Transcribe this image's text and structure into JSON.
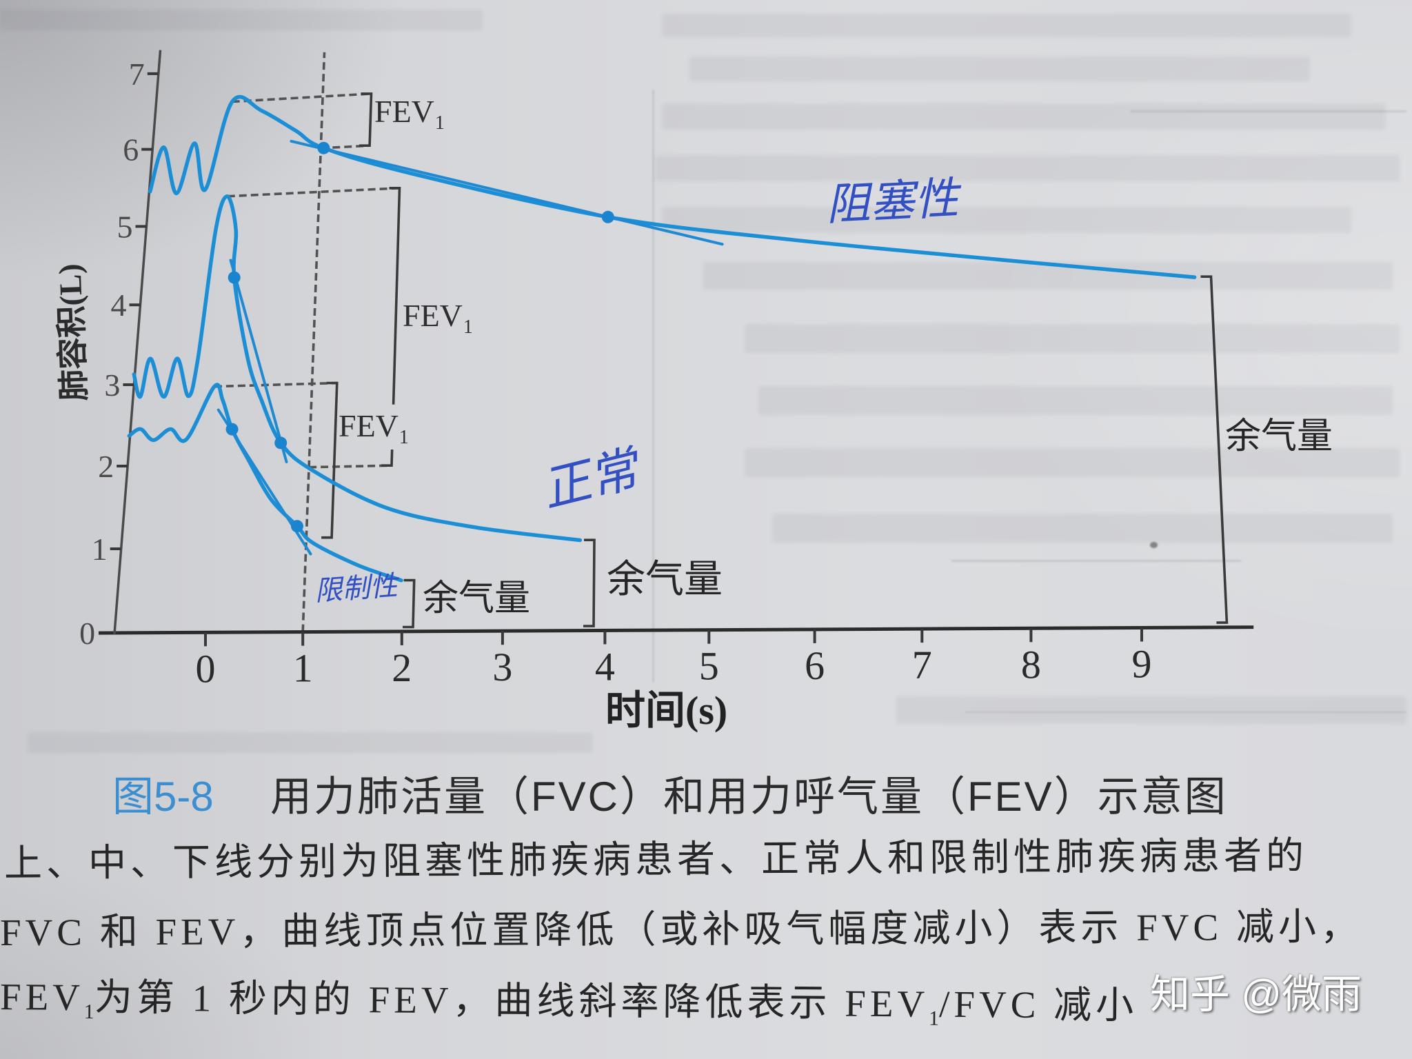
{
  "caption": {
    "figure_number": "图5-8",
    "title": "用力肺活量（FVC）和用力呼气量（FEV）示意图",
    "line1": "上、中、下线分别为阻塞性肺疾病患者、正常人和限制性肺疾病患者的",
    "line2": "FVC 和 FEV，曲线顶点位置降低（或补吸气幅度减小）表示 FVC 减小，",
    "line3": [
      {
        "text": "FEV"
      },
      {
        "sub": "1"
      },
      {
        "text": "为第 1 秒内的 FEV，曲线斜率降低表示 FEV"
      },
      {
        "sub": "1"
      },
      {
        "text": "/FVC 减小"
      }
    ]
  },
  "watermark": {
    "site": "知乎",
    "handle": "@微雨"
  },
  "colors": {
    "curve": "#1b8ed6",
    "handwriting_pen": "#3350c2",
    "figure_number": "#3b8fd0",
    "ink": "#2a2a2a",
    "dashed_lines": "#525252",
    "paper": "#d7d8db"
  },
  "chart_data": {
    "type": "line",
    "title": "用力肺活量（FVC）和用力呼气量（FEV）示意图",
    "xlabel": "时间(s)",
    "ylabel": "肺容积(L)",
    "xticks": [
      0,
      1,
      2,
      3,
      4,
      5,
      6,
      7,
      8,
      9
    ],
    "yticks": [
      0,
      1,
      2,
      3,
      4,
      5,
      6,
      7
    ],
    "xlim": [
      -1.1,
      9.98
    ],
    "ylim": [
      0,
      7.3
    ],
    "y_axis_at": -0.95,
    "grid": false,
    "legend": null,
    "series": [
      {
        "key": "obstructive",
        "name": "阻塞性",
        "position": "上线（阻塞性肺疾病患者）",
        "points": [
          [
            -0.94,
            5.45
          ],
          [
            -0.82,
            6.02
          ],
          [
            -0.63,
            5.41
          ],
          [
            -0.46,
            6.05
          ],
          [
            -0.3,
            5.44
          ],
          [
            -0.05,
            6.57
          ],
          [
            0.3,
            6.43
          ],
          [
            0.71,
            6.14
          ],
          [
            1.03,
            5.9
          ],
          [
            1.99,
            5.51
          ],
          [
            4.0,
            4.86
          ],
          [
            5.82,
            4.49
          ],
          [
            7.85,
            4.15
          ],
          [
            9.61,
            3.87
          ]
        ],
        "peak": 6.57,
        "volume_at_1s": 5.9,
        "end_volume": 3.87
      },
      {
        "key": "normal",
        "name": "正常",
        "position": "中线（正常人）",
        "points": [
          [
            -0.96,
            3.13
          ],
          [
            -0.87,
            2.85
          ],
          [
            -0.79,
            3.32
          ],
          [
            -0.61,
            2.84
          ],
          [
            -0.49,
            3.31
          ],
          [
            -0.34,
            2.84
          ],
          [
            -0.26,
            3.3
          ],
          [
            -0.15,
            4.92
          ],
          [
            -0.04,
            5.34
          ],
          [
            0.08,
            4.9
          ],
          [
            0.09,
            4.3
          ],
          [
            0.29,
            3.28
          ],
          [
            0.46,
            2.77
          ],
          [
            0.69,
            2.24
          ],
          [
            1.04,
            1.9
          ],
          [
            1.81,
            1.44
          ],
          [
            2.69,
            1.2
          ],
          [
            3.75,
            1.03
          ]
        ],
        "peak": 5.34,
        "volume_at_1s": 1.94,
        "end_volume": 1.03
      },
      {
        "key": "restrictive",
        "name": "限制性",
        "position": "下线（限制性肺疾病患者）",
        "points": [
          [
            -0.96,
            2.37
          ],
          [
            -0.84,
            2.45
          ],
          [
            -0.69,
            2.31
          ],
          [
            -0.51,
            2.44
          ],
          [
            -0.33,
            2.31
          ],
          [
            -0.06,
            2.95
          ],
          [
            0.04,
            2.78
          ],
          [
            0.16,
            2.42
          ],
          [
            0.35,
            2.05
          ],
          [
            0.61,
            1.57
          ],
          [
            0.9,
            1.24
          ],
          [
            1.07,
            1.04
          ],
          [
            1.54,
            0.77
          ],
          [
            1.98,
            0.59
          ]
        ],
        "peak": 2.95,
        "volume_at_1s": 1.1,
        "end_volume": 0.59
      }
    ],
    "reference_lines": [
      {
        "type": "vertical",
        "x": 1,
        "from": 0,
        "to": 7.15,
        "style": "dashed"
      }
    ],
    "fev1_brackets": [
      {
        "series": "阻塞性",
        "label": "FEV",
        "sub": "1",
        "x": 1.52,
        "top": 6.57,
        "bottom": 5.9,
        "top_from_x": -0.05,
        "bottom_from_x": 1.0,
        "gap": null
      },
      {
        "series": "正常",
        "label": "FEV",
        "sub": "1",
        "x": 1.85,
        "top": 5.34,
        "bottom": 1.94,
        "top_from_x": -0.04,
        "bottom_from_x": 1.0,
        "gap": [
          2.13,
          2.67
        ]
      },
      {
        "series": "限制性",
        "label": "FEV",
        "sub": "1",
        "x": 1.26,
        "top": 2.95,
        "bottom": 1.1,
        "top_from_x": -0.06,
        "bottom_from_x": null,
        "gap": null
      }
    ],
    "residual_volume_brackets": [
      {
        "series": "限制性",
        "label": "余气量",
        "x": 2.11,
        "top": 0.59,
        "bottom": 0.05
      },
      {
        "series": "正常",
        "label": "余气量",
        "x": 3.89,
        "top": 1.03,
        "bottom": 0.05
      },
      {
        "series": "阻塞性",
        "label": "余气量",
        "x": 9.76,
        "top": 3.87,
        "bottom": 0.05
      }
    ],
    "handwritten_annotations": {
      "labels": [
        {
          "key": "obstructive",
          "text": "阻塞性"
        },
        {
          "key": "normal",
          "text": "正常"
        },
        {
          "key": "restrictive",
          "text": "限制性"
        }
      ],
      "marked_points": [
        {
          "key": "obstructive",
          "points": [
            [
              1.03,
              5.9
            ],
            [
              4.0,
              4.86
            ]
          ]
        },
        {
          "key": "normal",
          "points": [
            [
              0.09,
              4.3
            ],
            [
              0.69,
              2.24
            ]
          ]
        },
        {
          "key": "restrictive",
          "points": [
            [
              0.16,
              2.42
            ],
            [
              0.9,
              1.24
            ]
          ]
        }
      ],
      "secant_lines": [
        {
          "key": "obstructive",
          "from": [
            0.66,
            6.01
          ],
          "to": [
            5.14,
            4.47
          ]
        },
        {
          "key": "normal",
          "from": [
            0.04,
            4.52
          ],
          "to": [
            0.76,
            2.01
          ]
        },
        {
          "key": "restrictive",
          "from": [
            0.0,
            2.66
          ],
          "to": [
            1.05,
            0.91
          ]
        }
      ]
    }
  }
}
